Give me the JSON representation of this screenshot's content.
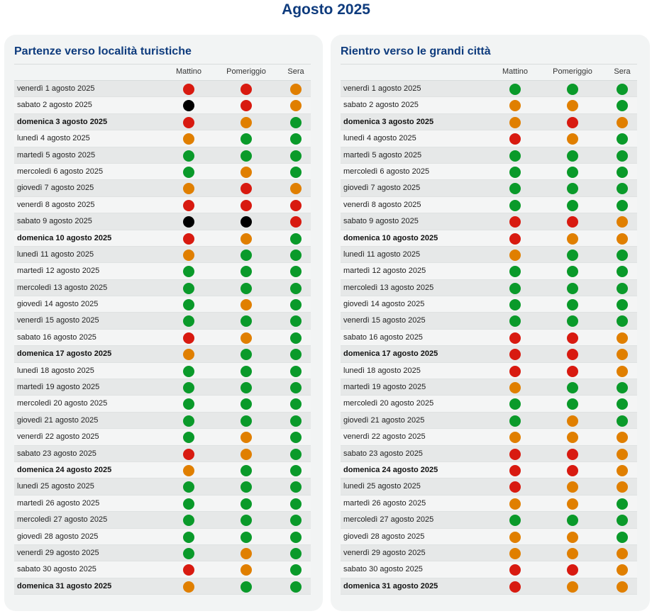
{
  "title": "Agosto 2025",
  "columns": [
    "Mattino",
    "Pomeriggio",
    "Sera"
  ],
  "colors": {
    "green": "#0a9a2a",
    "orange": "#e07f00",
    "red": "#d81a10",
    "black": "#000000"
  },
  "panels": [
    {
      "title": "Partenze verso località turistiche",
      "rows": [
        {
          "date": "venerdì 1 agosto 2025",
          "bold": false,
          "status": [
            "red",
            "red",
            "orange"
          ]
        },
        {
          "date": "sabato 2 agosto 2025",
          "bold": false,
          "status": [
            "black",
            "red",
            "orange"
          ]
        },
        {
          "date": "domenica 3 agosto 2025",
          "bold": true,
          "status": [
            "red",
            "orange",
            "green"
          ]
        },
        {
          "date": "lunedì 4 agosto 2025",
          "bold": false,
          "status": [
            "orange",
            "green",
            "green"
          ]
        },
        {
          "date": "martedì 5 agosto 2025",
          "bold": false,
          "status": [
            "green",
            "green",
            "green"
          ]
        },
        {
          "date": "mercoledì 6 agosto 2025",
          "bold": false,
          "status": [
            "green",
            "orange",
            "green"
          ]
        },
        {
          "date": "giovedì 7 agosto 2025",
          "bold": false,
          "status": [
            "orange",
            "red",
            "orange"
          ]
        },
        {
          "date": "venerdì 8 agosto 2025",
          "bold": false,
          "status": [
            "red",
            "red",
            "red"
          ]
        },
        {
          "date": "sabato 9 agosto 2025",
          "bold": false,
          "status": [
            "black",
            "black",
            "red"
          ]
        },
        {
          "date": "domenica 10 agosto 2025",
          "bold": true,
          "status": [
            "red",
            "orange",
            "green"
          ]
        },
        {
          "date": "lunedì 11 agosto 2025",
          "bold": false,
          "status": [
            "orange",
            "green",
            "green"
          ]
        },
        {
          "date": "martedì 12 agosto 2025",
          "bold": false,
          "status": [
            "green",
            "green",
            "green"
          ]
        },
        {
          "date": "mercoledì 13 agosto 2025",
          "bold": false,
          "status": [
            "green",
            "green",
            "green"
          ]
        },
        {
          "date": "giovedì 14 agosto 2025",
          "bold": false,
          "status": [
            "green",
            "orange",
            "green"
          ]
        },
        {
          "date": "venerdì 15 agosto 2025",
          "bold": false,
          "status": [
            "green",
            "green",
            "green"
          ]
        },
        {
          "date": "sabato 16 agosto 2025",
          "bold": false,
          "status": [
            "red",
            "orange",
            "green"
          ]
        },
        {
          "date": "domenica 17 agosto 2025",
          "bold": true,
          "status": [
            "orange",
            "green",
            "green"
          ]
        },
        {
          "date": "lunedì 18 agosto 2025",
          "bold": false,
          "status": [
            "green",
            "green",
            "green"
          ]
        },
        {
          "date": "martedì 19 agosto 2025",
          "bold": false,
          "status": [
            "green",
            "green",
            "green"
          ]
        },
        {
          "date": "mercoledì 20 agosto 2025",
          "bold": false,
          "status": [
            "green",
            "green",
            "green"
          ]
        },
        {
          "date": "giovedì 21 agosto 2025",
          "bold": false,
          "status": [
            "green",
            "green",
            "green"
          ]
        },
        {
          "date": "venerdì 22 agosto 2025",
          "bold": false,
          "status": [
            "green",
            "orange",
            "green"
          ]
        },
        {
          "date": "sabato 23 agosto 2025",
          "bold": false,
          "status": [
            "red",
            "orange",
            "green"
          ]
        },
        {
          "date": "domenica 24 agosto 2025",
          "bold": true,
          "status": [
            "orange",
            "green",
            "green"
          ]
        },
        {
          "date": "lunedì 25 agosto 2025",
          "bold": false,
          "status": [
            "green",
            "green",
            "green"
          ]
        },
        {
          "date": "martedì 26 agosto 2025",
          "bold": false,
          "status": [
            "green",
            "green",
            "green"
          ]
        },
        {
          "date": "mercoledì 27 agosto 2025",
          "bold": false,
          "status": [
            "green",
            "green",
            "green"
          ]
        },
        {
          "date": "giovedì 28 agosto 2025",
          "bold": false,
          "status": [
            "green",
            "green",
            "green"
          ]
        },
        {
          "date": "venerdì 29 agosto 2025",
          "bold": false,
          "status": [
            "green",
            "orange",
            "green"
          ]
        },
        {
          "date": "sabato 30 agosto 2025",
          "bold": false,
          "status": [
            "red",
            "orange",
            "green"
          ]
        },
        {
          "date": "domenica 31 agosto 2025",
          "bold": true,
          "status": [
            "orange",
            "green",
            "green"
          ]
        }
      ]
    },
    {
      "title": "Rientro verso le grandi città",
      "rows": [
        {
          "date": "venerdì 1 agosto 2025",
          "bold": false,
          "status": [
            "green",
            "green",
            "green"
          ]
        },
        {
          "date": "sabato 2 agosto 2025",
          "bold": false,
          "status": [
            "orange",
            "orange",
            "green"
          ]
        },
        {
          "date": "domenica 3 agosto 2025",
          "bold": true,
          "status": [
            "orange",
            "red",
            "orange"
          ]
        },
        {
          "date": "lunedì 4 agosto 2025",
          "bold": false,
          "status": [
            "red",
            "orange",
            "green"
          ]
        },
        {
          "date": "martedì 5 agosto 2025",
          "bold": false,
          "status": [
            "green",
            "green",
            "green"
          ]
        },
        {
          "date": "mercoledì 6 agosto 2025",
          "bold": false,
          "status": [
            "green",
            "green",
            "green"
          ]
        },
        {
          "date": "giovedì 7 agosto 2025",
          "bold": false,
          "status": [
            "green",
            "green",
            "green"
          ]
        },
        {
          "date": "venerdì 8 agosto 2025",
          "bold": false,
          "status": [
            "green",
            "green",
            "green"
          ]
        },
        {
          "date": "sabato 9 agosto 2025",
          "bold": false,
          "status": [
            "red",
            "red",
            "orange"
          ]
        },
        {
          "date": "domenica 10 agosto 2025",
          "bold": true,
          "status": [
            "red",
            "orange",
            "orange"
          ]
        },
        {
          "date": "lunedì 11 agosto 2025",
          "bold": false,
          "status": [
            "orange",
            "green",
            "green"
          ]
        },
        {
          "date": "martedì 12 agosto 2025",
          "bold": false,
          "status": [
            "green",
            "green",
            "green"
          ]
        },
        {
          "date": "mercoledì 13 agosto 2025",
          "bold": false,
          "status": [
            "green",
            "green",
            "green"
          ]
        },
        {
          "date": "giovedì 14 agosto 2025",
          "bold": false,
          "status": [
            "green",
            "green",
            "green"
          ]
        },
        {
          "date": "venerdì 15 agosto 2025",
          "bold": false,
          "status": [
            "green",
            "green",
            "green"
          ]
        },
        {
          "date": "sabato 16 agosto 2025",
          "bold": false,
          "status": [
            "red",
            "red",
            "orange"
          ]
        },
        {
          "date": "domenica 17 agosto 2025",
          "bold": true,
          "status": [
            "red",
            "red",
            "orange"
          ]
        },
        {
          "date": "lunedì 18 agosto 2025",
          "bold": false,
          "status": [
            "red",
            "red",
            "orange"
          ]
        },
        {
          "date": "martedì 19 agosto 2025",
          "bold": false,
          "status": [
            "orange",
            "green",
            "green"
          ]
        },
        {
          "date": "mercoledì 20 agosto 2025",
          "bold": false,
          "status": [
            "green",
            "green",
            "green"
          ]
        },
        {
          "date": "giovedì 21 agosto 2025",
          "bold": false,
          "status": [
            "green",
            "orange",
            "green"
          ]
        },
        {
          "date": "venerdì 22 agosto 2025",
          "bold": false,
          "status": [
            "orange",
            "orange",
            "orange"
          ]
        },
        {
          "date": "sabato 23 agosto 2025",
          "bold": false,
          "status": [
            "red",
            "red",
            "orange"
          ]
        },
        {
          "date": "domenica 24 agosto 2025",
          "bold": true,
          "status": [
            "red",
            "red",
            "orange"
          ]
        },
        {
          "date": "lunedì 25 agosto 2025",
          "bold": false,
          "status": [
            "red",
            "orange",
            "orange"
          ]
        },
        {
          "date": "martedì 26 agosto 2025",
          "bold": false,
          "status": [
            "orange",
            "orange",
            "green"
          ]
        },
        {
          "date": "mercoledì 27 agosto 2025",
          "bold": false,
          "status": [
            "green",
            "green",
            "green"
          ]
        },
        {
          "date": "giovedì 28 agosto 2025",
          "bold": false,
          "status": [
            "orange",
            "orange",
            "green"
          ]
        },
        {
          "date": "venerdì 29 agosto 2025",
          "bold": false,
          "status": [
            "orange",
            "orange",
            "orange"
          ]
        },
        {
          "date": "sabato 30 agosto 2025",
          "bold": false,
          "status": [
            "red",
            "red",
            "orange"
          ]
        },
        {
          "date": "domenica 31 agosto 2025",
          "bold": true,
          "status": [
            "red",
            "orange",
            "orange"
          ]
        }
      ]
    }
  ]
}
